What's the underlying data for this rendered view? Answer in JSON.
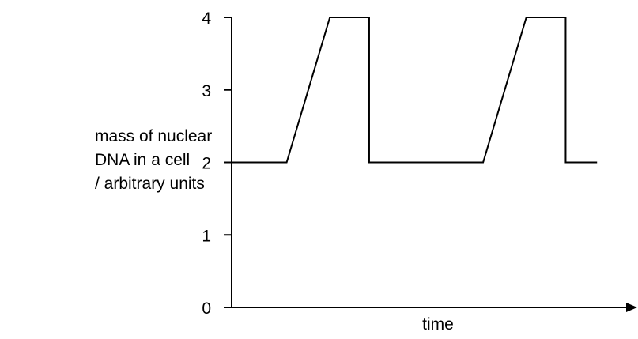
{
  "chart_data": {
    "type": "line",
    "xlabel": "time",
    "ylabel_lines": [
      "mass of nuclear",
      "DNA in a cell",
      "/ arbitrary units"
    ],
    "yticks": [
      "0",
      "1",
      "2",
      "3",
      "4"
    ],
    "ylim": [
      0,
      4
    ],
    "xlim": [
      0,
      10
    ],
    "grid": false,
    "x_arrow": true,
    "series": [
      {
        "points": [
          {
            "x": 0.0,
            "y": 2
          },
          {
            "x": 1.4,
            "y": 2
          },
          {
            "x": 2.5,
            "y": 4
          },
          {
            "x": 3.5,
            "y": 4
          },
          {
            "x": 3.5,
            "y": 2
          },
          {
            "x": 6.4,
            "y": 2
          },
          {
            "x": 7.5,
            "y": 4
          },
          {
            "x": 8.5,
            "y": 4
          },
          {
            "x": 8.5,
            "y": 2
          },
          {
            "x": 9.3,
            "y": 2
          }
        ]
      }
    ]
  }
}
